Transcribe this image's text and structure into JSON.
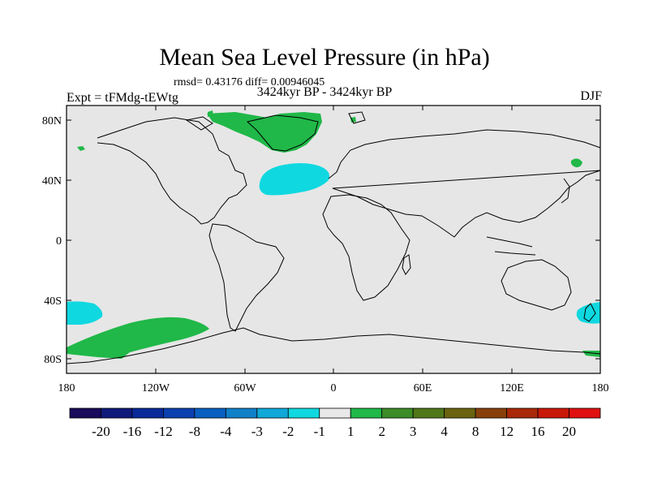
{
  "title": "Mean Sea Level Pressure (in hPa)",
  "subtitle": "rmsd= 0.43176 diff= 0.00946045",
  "left_label": "Expt = tFMdg-tEWtg",
  "center_label": "3424kyr BP - 3424kyr BP",
  "right_label": "DJF",
  "lat_ticks": [
    "80N",
    "40N",
    "0",
    "40S",
    "80S"
  ],
  "lon_ticks": [
    "180",
    "120W",
    "60W",
    "0",
    "60E",
    "120E",
    "180"
  ],
  "colorbar": {
    "labels": [
      "-20",
      "-16",
      "-12",
      "-8",
      "-4",
      "-3",
      "-2",
      "-1",
      "1",
      "2",
      "3",
      "4",
      "8",
      "12",
      "16",
      "20"
    ],
    "colors": [
      "#1a0a5c",
      "#101a7a",
      "#0a2a9a",
      "#0a40b0",
      "#0a60c0",
      "#1080c8",
      "#10a8d8",
      "#10d8e0",
      "#e8e8e8",
      "#20b848",
      "#3c8c28",
      "#50781a",
      "#6a6410",
      "#88400a",
      "#a82808",
      "#c81808",
      "#e01010"
    ]
  },
  "colors": {
    "land_ocean": "#e6e6e6",
    "positive": "#20b848",
    "negative": "#10d8e0",
    "coastline": "#000000"
  }
}
